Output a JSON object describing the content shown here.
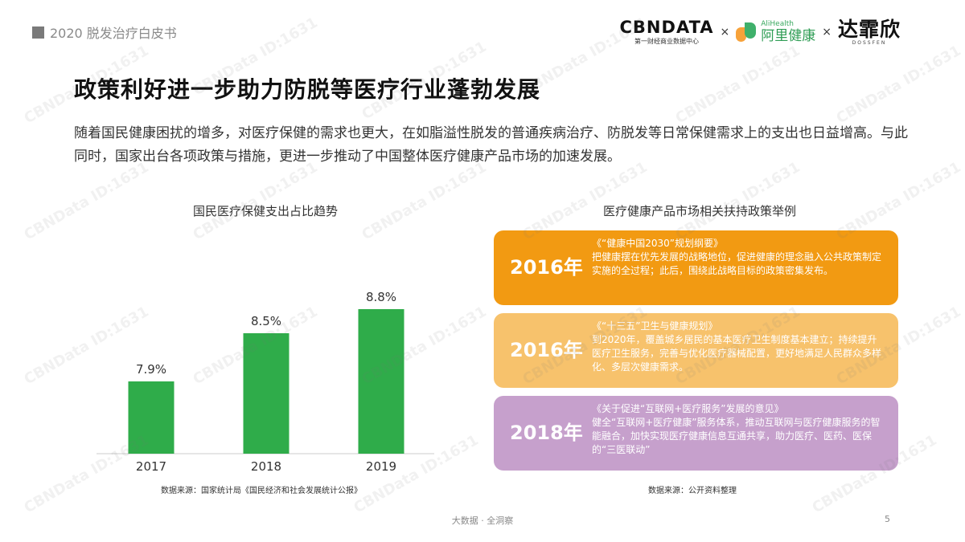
{
  "header": {
    "report_title": "2020 脱发治疗白皮书",
    "logos": {
      "cbndata": "CBNDATA",
      "cbndata_sub": "第一财经商业数据中心",
      "ali_en": "AliHealth",
      "ali_cn": "阿里健康",
      "dxx_cn": "达霏欣",
      "dxx_sub": "DOSSFEN",
      "separator": "×"
    }
  },
  "main": {
    "title": "政策利好进一步助力防脱等医疗行业蓬勃发展",
    "intro": "随着国民健康困扰的增多，对医疗保健的需求也更大，在如脂溢性脱发的普通疾病治疗、防脱发等日常保健需求上的支出也日益增高。与此同时，国家出台各项政策与措施，更进一步推动了中国整体医疗健康产品市场的加速发展。"
  },
  "chart_data": {
    "type": "bar",
    "title": "国民医疗保健支出占比趋势",
    "categories": [
      "2017",
      "2018",
      "2019"
    ],
    "values": [
      7.9,
      8.5,
      8.8
    ],
    "labels": [
      "7.9%",
      "8.5%",
      "8.8%"
    ],
    "bar_color": "#2fac4a",
    "source": "数据来源：国家统计局《国民经济和社会发展统计公报》"
  },
  "policies": {
    "title": "医疗健康产品市场相关扶持政策举例",
    "items": [
      {
        "year": "2016年",
        "name": "《“健康中国2030”规划纲要》",
        "text": "把健康摆在优先发展的战略地位，促进健康的理念融入公共政策制定实施的全过程；此后，围绕此战略目标的政策密集发布。",
        "color": "#f29a12"
      },
      {
        "year": "2016年",
        "name": "《“十三五”卫生与健康规划》",
        "text": "到2020年，覆盖城乡居民的基本医疗卫生制度基本建立；持续提升医疗卫生服务，完善与优化医疗器械配置，更好地满足人民群众多样化、多层次健康需求。",
        "color": "#f7c26c"
      },
      {
        "year": "2018年",
        "name": "《关于促进“互联网+医疗服务”发展的意见》",
        "text": "健全“互联网+医疗健康”服务体系，推动互联网与医疗健康服务的智能融合，加快实现医疗健康信息互通共享，助力医疗、医药、医保的“三医联动”",
        "color": "#c6a0cc"
      }
    ],
    "source": "数据来源：公开资料整理"
  },
  "footer": {
    "text": "大数据 · 全洞察",
    "page": "5"
  },
  "watermark": "CBNData ID:1631"
}
